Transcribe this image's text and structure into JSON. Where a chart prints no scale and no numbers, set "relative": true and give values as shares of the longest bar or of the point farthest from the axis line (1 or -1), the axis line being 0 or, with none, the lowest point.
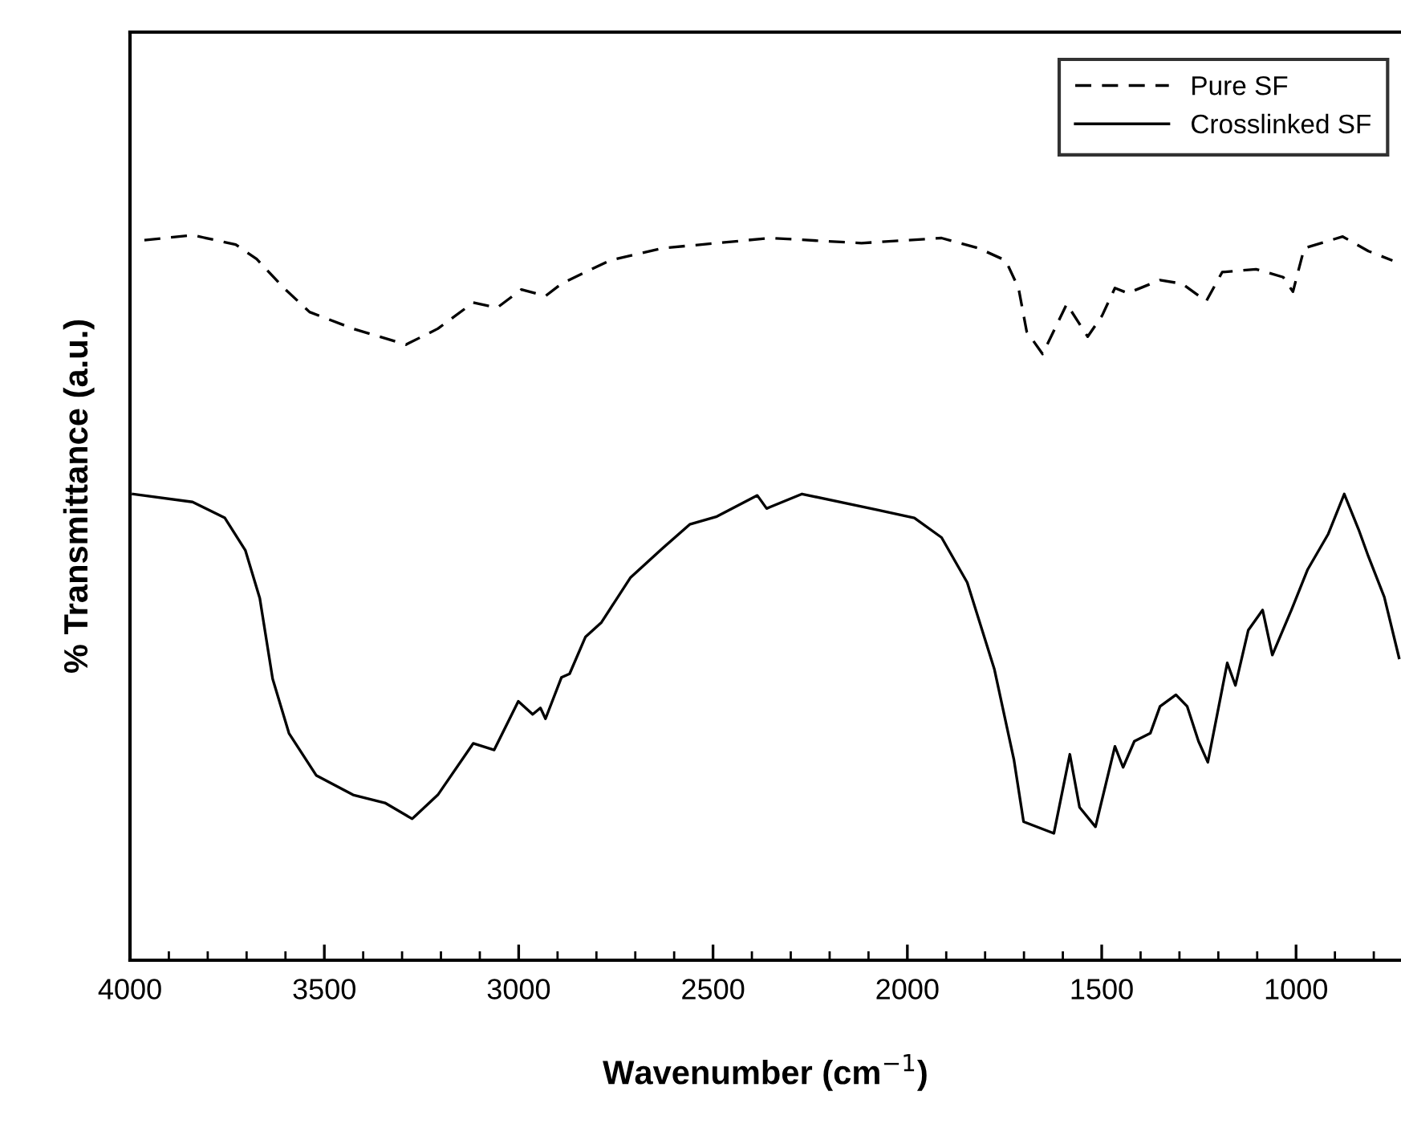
{
  "chart_data": {
    "type": "line",
    "relative": true,
    "xlabel": "Wavenumber (cm$^{−1}$)",
    "ylabel": "% Transmittance (a.u.)",
    "xlim": [
      4000,
      730
    ],
    "xticks": [
      4000,
      {
        "value": 3900,
        "label": null
      },
      {
        "value": 3800,
        "label": null
      },
      {
        "value": 3700,
        "label": null
      },
      {
        "value": 3600,
        "label": null
      },
      3500,
      {
        "value": 3400,
        "label": null
      },
      {
        "value": 3300,
        "label": null
      },
      {
        "value": 3200,
        "label": null
      },
      {
        "value": 3100,
        "label": null
      },
      3000,
      {
        "value": 2900,
        "label": null
      },
      {
        "value": 2800,
        "label": null
      },
      {
        "value": 2700,
        "label": null
      },
      {
        "value": 2600,
        "label": null
      },
      2500,
      {
        "value": 2400,
        "label": null
      },
      {
        "value": 2300,
        "label": null
      },
      {
        "value": 2200,
        "label": null
      },
      {
        "value": 2100,
        "label": null
      },
      2000,
      {
        "value": 1900,
        "label": null
      },
      {
        "value": 1800,
        "label": null
      },
      {
        "value": 1700,
        "label": null
      },
      {
        "value": 1600,
        "label": null
      },
      1500,
      {
        "value": 1400,
        "label": null
      },
      {
        "value": 1300,
        "label": null
      },
      {
        "value": 1200,
        "label": null
      },
      {
        "value": 1100,
        "label": null
      },
      1000,
      {
        "value": 900,
        "label": null
      },
      {
        "value": 800,
        "label": null
      }
    ],
    "legend": "top right",
    "grid": false,
    "series": [
      {
        "name": "Pure SF",
        "color": "#000000",
        "line_style": "dashed",
        "x": [
          3963,
          3839,
          3728,
          3674,
          3604,
          3538,
          3426,
          3290,
          3208,
          3117,
          3055,
          2993,
          2931,
          2890,
          2766,
          2630,
          2490,
          2353,
          2118,
          1912,
          1817,
          1747,
          1714,
          1693,
          1652,
          1590,
          1536,
          1499,
          1466,
          1433,
          1350,
          1293,
          1231,
          1190,
          1103,
          1033,
          1008,
          979,
          880,
          814,
          752
        ],
        "values": [
          0.993,
          1.0,
          0.987,
          0.967,
          0.927,
          0.894,
          0.871,
          0.849,
          0.871,
          0.907,
          0.9,
          0.925,
          0.916,
          0.933,
          0.965,
          0.982,
          0.989,
          0.996,
          0.989,
          0.996,
          0.982,
          0.965,
          0.927,
          0.867,
          0.836,
          0.905,
          0.86,
          0.889,
          0.927,
          0.92,
          0.938,
          0.933,
          0.909,
          0.949,
          0.953,
          0.942,
          0.922,
          0.982,
          0.998,
          0.978,
          0.965
        ]
      },
      {
        "name": "Crosslinked SF",
        "color": "#000000",
        "line_style": "solid",
        "x": [
          3992,
          3839,
          3756,
          3703,
          3666,
          3633,
          3591,
          3521,
          3426,
          3344,
          3274,
          3208,
          3117,
          3063,
          3001,
          2964,
          2944,
          2931,
          2890,
          2869,
          2828,
          2787,
          2712,
          2630,
          2560,
          2490,
          2386,
          2362,
          2353,
          2271,
          2077,
          1982,
          1912,
          1846,
          1776,
          1726,
          1701,
          1623,
          1582,
          1557,
          1516,
          1466,
          1445,
          1416,
          1375,
          1350,
          1309,
          1280,
          1251,
          1227,
          1177,
          1156,
          1123,
          1086,
          1061,
          1012,
          970,
          917,
          876,
          839,
          814,
          773,
          735
        ],
        "values": [
          0.643,
          0.632,
          0.61,
          0.565,
          0.499,
          0.388,
          0.313,
          0.255,
          0.228,
          0.217,
          0.195,
          0.228,
          0.299,
          0.29,
          0.357,
          0.339,
          0.348,
          0.333,
          0.39,
          0.395,
          0.446,
          0.466,
          0.528,
          0.568,
          0.601,
          0.612,
          0.641,
          0.623,
          0.625,
          0.643,
          0.621,
          0.61,
          0.583,
          0.521,
          0.401,
          0.277,
          0.191,
          0.175,
          0.284,
          0.211,
          0.184,
          0.295,
          0.266,
          0.302,
          0.313,
          0.35,
          0.366,
          0.35,
          0.302,
          0.273,
          0.41,
          0.379,
          0.455,
          0.483,
          0.421,
          0.483,
          0.539,
          0.588,
          0.643,
          0.594,
          0.557,
          0.501,
          0.417
        ]
      }
    ]
  }
}
